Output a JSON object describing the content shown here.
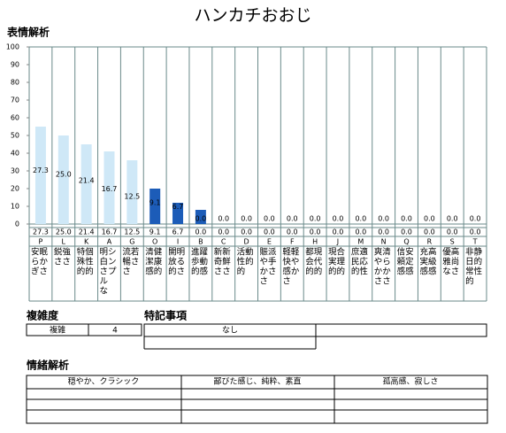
{
  "title": "ハンカチおおじ",
  "chart_data": {
    "type": "bar",
    "title": "表情解析",
    "categories": [
      "P",
      "L",
      "K",
      "A",
      "G",
      "O",
      "I",
      "B",
      "C",
      "D",
      "E",
      "F",
      "H",
      "J",
      "M",
      "N",
      "Q",
      "R",
      "S",
      "T"
    ],
    "values": [
      55,
      50,
      45,
      41,
      36,
      20,
      12,
      8,
      0,
      0,
      0,
      0,
      0,
      0,
      0,
      0,
      0,
      0,
      0,
      0
    ],
    "colors": [
      "#cfe8f7",
      "#cfe8f7",
      "#cfe8f7",
      "#cfe8f7",
      "#cfe8f7",
      "#1c5cb8",
      "#1c5cb8",
      "#1c5cb8",
      "#1c5cb8",
      "#1c5cb8",
      "#1c5cb8",
      "#1c5cb8",
      "#1c5cb8",
      "#1c5cb8",
      "#1c5cb8",
      "#1c5cb8",
      "#1c5cb8",
      "#1c5cb8",
      "#1c5cb8",
      "#1c5cb8"
    ],
    "scores": [
      27.3,
      25,
      21.4,
      16.7,
      12.5,
      9.1,
      6.7,
      0,
      0,
      0,
      0,
      0,
      0,
      0,
      0,
      0,
      0,
      0,
      0,
      0
    ],
    "score_labels": [
      "27.3",
      "25.0",
      "21.4",
      "16.7",
      "12.5",
      "9.1",
      "6.7",
      "0.0",
      "0.0",
      "0.0",
      "0.0",
      "0.0",
      "0.0",
      "0.0",
      "0.0",
      "0.0",
      "0.0",
      "0.0",
      "0.0",
      "0.0"
    ],
    "descriptions": [
      [
        "安眠",
        "らか",
        "ぎさ"
      ],
      [
        "鋭強",
        "ささ"
      ],
      [
        "特個",
        "殊性",
        "的的"
      ],
      [
        "明シ",
        "白ン",
        "さプ",
        "ル",
        "な"
      ],
      [
        "流若",
        "暢さ",
        "さ"
      ],
      [
        "清健",
        "潔康",
        "感的"
      ],
      [
        "開明",
        "放る",
        "的さ"
      ],
      [
        "進躍",
        "歩動",
        "的感"
      ],
      [
        "新新",
        "奇鮮",
        "ささ"
      ],
      [
        "活動",
        "性的",
        "的"
      ],
      [
        "賑派",
        "や手",
        "かさ",
        "さ"
      ],
      [
        "軽軽",
        "快や",
        "感か",
        "さ"
      ],
      [
        "都現",
        "会代",
        "的的"
      ],
      [
        "現合",
        "実理",
        "的的"
      ],
      [
        "庶適",
        "民応",
        "的性"
      ],
      [
        "爽清",
        "やら",
        "かか",
        "ささ"
      ],
      [
        "信安",
        "頼定",
        "感感"
      ],
      [
        "充高",
        "実級",
        "感感"
      ],
      [
        "優高",
        "雅尚",
        "なさ"
      ],
      [
        "非静",
        "日的",
        "常性",
        "的"
      ]
    ],
    "ylim": [
      0,
      100
    ],
    "yticks": [
      0,
      10,
      20,
      30,
      40,
      50,
      60,
      70,
      80,
      90,
      100
    ]
  },
  "complexity": {
    "title": "複雑度",
    "label": "複雑",
    "value": "4"
  },
  "notes": {
    "title": "特記事項",
    "value": "なし"
  },
  "emotion": {
    "title": "情緒解析",
    "headers": [
      "穏やか、クラシック",
      "鄙びた感じ、純粋、素直",
      "孤高感、寂しさ"
    ]
  }
}
